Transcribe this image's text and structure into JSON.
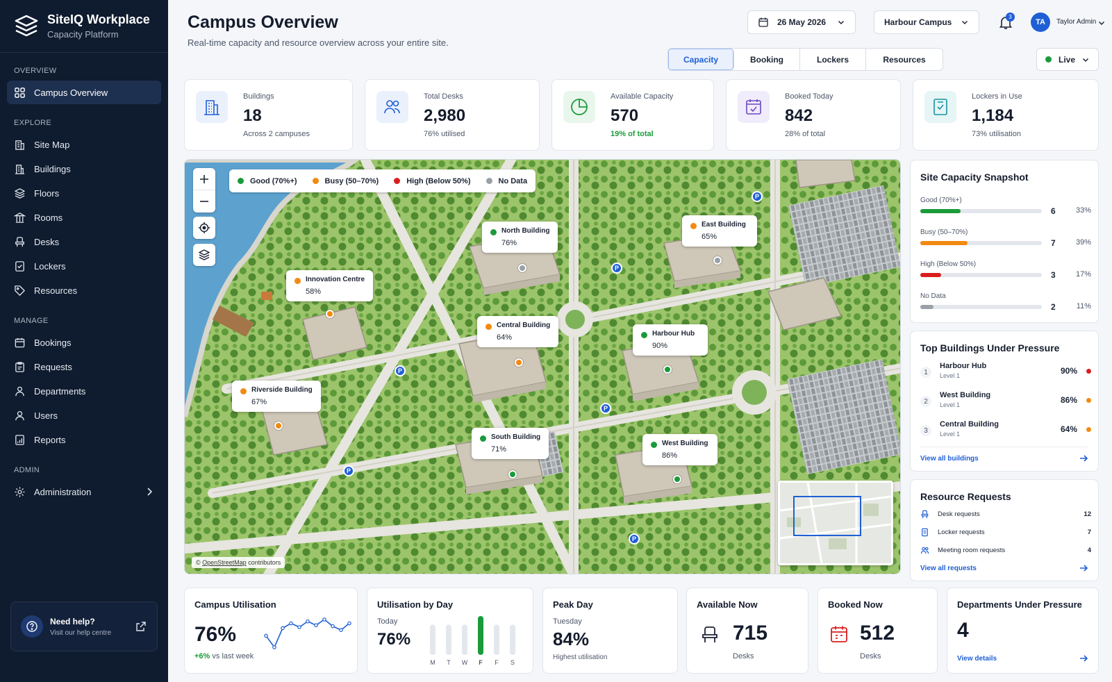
{
  "brand": {
    "name": "SiteIQ Workplace",
    "subtitle": "Capacity Platform"
  },
  "nav": {
    "sections": {
      "overview": "OVERVIEW",
      "explore": "EXPLORE",
      "manage": "MANAGE",
      "admin": "ADMIN"
    },
    "overview": {
      "label": "Campus Overview",
      "icon": "grid-icon"
    },
    "explore": [
      {
        "label": "Site Map",
        "icon": "building-map-icon"
      },
      {
        "label": "Buildings",
        "icon": "building-icon"
      },
      {
        "label": "Floors",
        "icon": "layers-icon"
      },
      {
        "label": "Rooms",
        "icon": "columns-icon"
      },
      {
        "label": "Desks",
        "icon": "chair-icon"
      },
      {
        "label": "Lockers",
        "icon": "locker-icon"
      },
      {
        "label": "Resources",
        "icon": "tag-icon"
      }
    ],
    "manage": [
      {
        "label": "Bookings",
        "icon": "calendar-icon"
      },
      {
        "label": "Requests",
        "icon": "clipboard-icon"
      },
      {
        "label": "Departments",
        "icon": "department-icon"
      },
      {
        "label": "Users",
        "icon": "user-icon"
      },
      {
        "label": "Reports",
        "icon": "report-icon"
      }
    ],
    "admin": {
      "label": "Administration",
      "icon": "gear-icon"
    }
  },
  "help": {
    "title": "Need help?",
    "subtitle": "Visit our help centre"
  },
  "header": {
    "title": "Campus Overview",
    "subtitle": "Real-time capacity and resource overview across your entire site.",
    "date": "26 May 2026",
    "campus": "Harbour Campus",
    "notifications": "3",
    "user_initials": "TA",
    "user_name": "Taylor Admin",
    "tabs": [
      "Capacity",
      "Booking",
      "Lockers",
      "Resources"
    ],
    "active_tab": "Capacity",
    "live_label": "Live"
  },
  "stats": [
    {
      "label": "Buildings",
      "value": "18",
      "sub": "Across 2 campuses",
      "icon": "building-icon"
    },
    {
      "label": "Total Desks",
      "value": "2,980",
      "sub": "76% utilised",
      "icon": "people-icon"
    },
    {
      "label": "Available Capacity",
      "value": "570",
      "sub": "19% of total",
      "icon": "pie-icon"
    },
    {
      "label": "Booked Today",
      "value": "842",
      "sub": "28% of total",
      "icon": "calendar-check-icon"
    },
    {
      "label": "Lockers in Use",
      "value": "1,184",
      "sub": "73% utilisation",
      "icon": "locker-icon"
    }
  ],
  "map": {
    "legend": [
      {
        "label": "Good (70%+)",
        "color": "#1a9b3a"
      },
      {
        "label": "Busy (50–70%)",
        "color": "#f28a12"
      },
      {
        "label": "High (Below 50%)",
        "color": "#d91e1e"
      },
      {
        "label": "No Data",
        "color": "#9aa0a8"
      }
    ],
    "buildings": [
      {
        "name": "North Building",
        "pct": "76%",
        "color": "#1a9b3a"
      },
      {
        "name": "East Building",
        "pct": "65%",
        "color": "#f28a12"
      },
      {
        "name": "Innovation Centre",
        "pct": "58%",
        "color": "#f28a12"
      },
      {
        "name": "Central Building",
        "pct": "64%",
        "color": "#f28a12"
      },
      {
        "name": "Harbour Hub",
        "pct": "90%",
        "color": "#1a9b3a"
      },
      {
        "name": "Riverside Building",
        "pct": "67%",
        "color": "#f28a12"
      },
      {
        "name": "South Building",
        "pct": "71%",
        "color": "#1a9b3a"
      },
      {
        "name": "West Building",
        "pct": "86%",
        "color": "#1a9b3a"
      }
    ],
    "parking_label": "P",
    "attribution_prefix": "©",
    "attribution_link": "OpenStreetMap",
    "attribution_suffix": "contributors"
  },
  "snapshot": {
    "title": "Site Capacity Snapshot",
    "rows": [
      {
        "label": "Good (70%+)",
        "count": "6",
        "pct": "33%",
        "fill": 0.33,
        "color": "#1a9b3a"
      },
      {
        "label": "Busy (50–70%)",
        "count": "7",
        "pct": "39%",
        "fill": 0.39,
        "color": "#f28a12"
      },
      {
        "label": "High (Below 50%)",
        "count": "3",
        "pct": "17%",
        "fill": 0.17,
        "color": "#d91e1e"
      },
      {
        "label": "No Data",
        "count": "2",
        "pct": "11%",
        "fill": 0.11,
        "color": "#9aa0a8"
      }
    ]
  },
  "pressure": {
    "title": "Top Buildings Under Pressure",
    "rows": [
      {
        "rank": "1",
        "name": "Harbour Hub",
        "level": "Level 1",
        "pct": "90%",
        "color": "#d91e1e"
      },
      {
        "rank": "2",
        "name": "West Building",
        "level": "Level 1",
        "pct": "86%",
        "color": "#f28a12"
      },
      {
        "rank": "3",
        "name": "Central Building",
        "level": "Level 1",
        "pct": "64%",
        "color": "#f28a12"
      }
    ],
    "link": "View all buildings"
  },
  "requests": {
    "title": "Resource Requests",
    "rows": [
      {
        "label": "Desk requests",
        "count": "12",
        "icon": "chair-icon"
      },
      {
        "label": "Locker requests",
        "count": "7",
        "icon": "locker-icon"
      },
      {
        "label": "Meeting room requests",
        "count": "4",
        "icon": "meeting-icon"
      }
    ],
    "link": "View all requests"
  },
  "bottom": {
    "utilisation": {
      "title": "Campus Utilisation",
      "value": "76%",
      "delta": "+6%",
      "delta_text": "vs last week",
      "trend": [
        42,
        30,
        50,
        55,
        51,
        57,
        53,
        59,
        52,
        48,
        55
      ]
    },
    "by_day": {
      "title": "Utilisation by Day",
      "label": "Today",
      "value": "76%",
      "days": [
        "M",
        "T",
        "W",
        "F",
        "F",
        "S"
      ],
      "levels": [
        0.55,
        0.68,
        0.78,
        1.0,
        0.78,
        0.72
      ],
      "highlight_index": 3
    },
    "peak": {
      "title": "Peak Day",
      "day": "Tuesday",
      "value": "84%",
      "sub": "Highest utilisation"
    },
    "available": {
      "title": "Available Now",
      "value": "715",
      "sub": "Desks"
    },
    "booked": {
      "title": "Booked Now",
      "value": "512",
      "sub": "Desks"
    },
    "departments": {
      "title": "Departments Under Pressure",
      "value": "4",
      "link": "View details"
    }
  },
  "colors": {
    "accent": "#1f5fd6",
    "sidebar": "#0f1b2e",
    "good": "#1a9b3a",
    "busy": "#f28a12",
    "high": "#d91e1e"
  }
}
